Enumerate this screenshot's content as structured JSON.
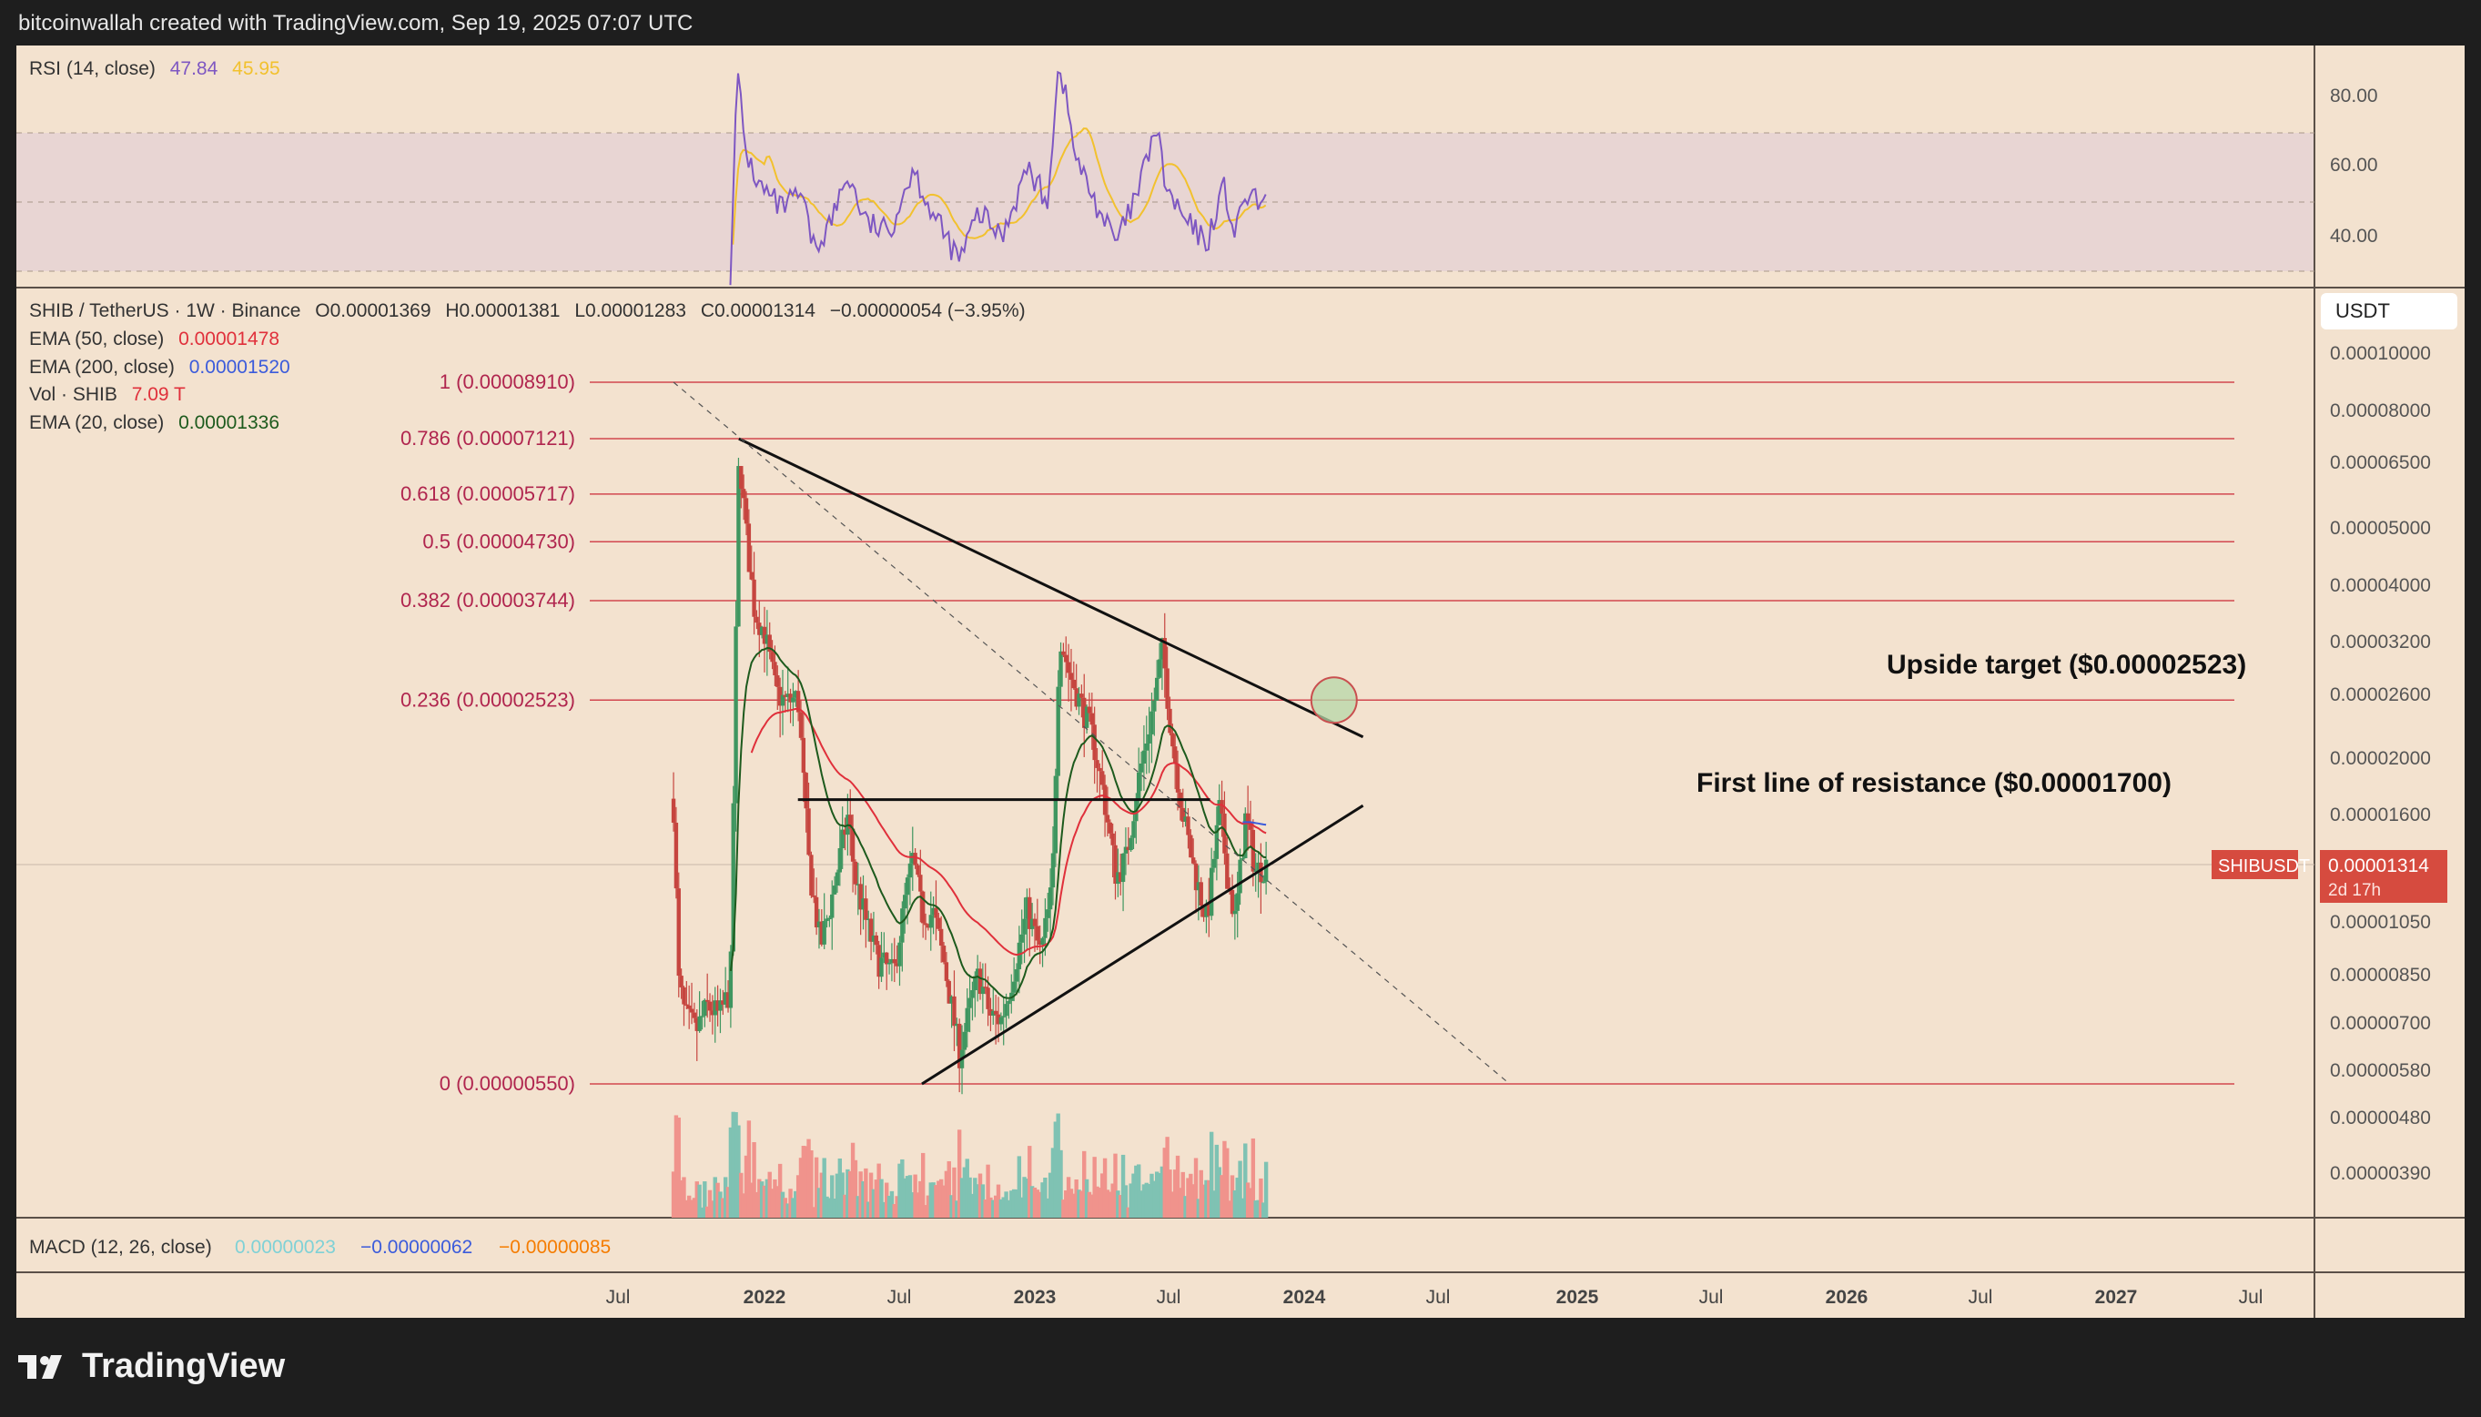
{
  "header": {
    "credit": "bitcoinwallah created with TradingView.com, Sep 19, 2025 07:07 UTC"
  },
  "brand": {
    "name": "TradingView"
  },
  "colors": {
    "page": "#1e1e1e",
    "panel": "#f3e2cf",
    "rsi_band": "#e8d5d3",
    "grid": "#b8a99a",
    "up": "#3f9660",
    "down": "#c6453f",
    "rsi_line": "#7e57c2",
    "rsi_ma": "#f2c12e",
    "ema50": "#e0303b",
    "ema20": "#1d5a1d",
    "fib": "#d2474f",
    "fib_text": "#b0254e",
    "price_badge": "#d64b3f",
    "macd_blue": "#3b5bdb",
    "macd_orange": "#f57c00",
    "macd_cyan": "#7fd1d6"
  },
  "rsi_panel": {
    "legend": {
      "label": "RSI (14, close)",
      "value1": "47.84",
      "value2": "45.95"
    },
    "ticks": [
      "80.00",
      "60.00",
      "40.00"
    ]
  },
  "price_panel": {
    "symbol_line": "SHIB / TetherUS · 1W · Binance",
    "ohlc": {
      "o": "O0.00001369",
      "h": "H0.00001381",
      "l": "L0.00001283",
      "c": "C0.00001314",
      "chg": "−0.00000054 (−3.95%)"
    },
    "indicators": [
      {
        "label": "EMA (50, close)",
        "value": "0.00001478",
        "color": "#e0303b"
      },
      {
        "label": "EMA (200, close)",
        "value": "0.00001520",
        "color": "#3b5bdb"
      },
      {
        "label": "Vol · SHIB",
        "value": "7.09 T",
        "color": "#e0303b"
      },
      {
        "label": "EMA (20, close)",
        "value": "0.00001336",
        "color": "#1d5a1d"
      }
    ],
    "currency_button": "USDT",
    "price_axis": [
      "0.00010000",
      "0.00008000",
      "0.00006500",
      "0.00005000",
      "0.00004000",
      "0.00003200",
      "0.00002600",
      "0.00002000",
      "0.00001600",
      "0.00001050",
      "0.00000850",
      "0.00000700",
      "0.00000580",
      "0.00000480",
      "0.00000390"
    ],
    "badge": {
      "symbol": "SHIBUSDT",
      "price": "0.00001314",
      "countdown": "2d 17h"
    },
    "annotations": {
      "upside": "Upside target ($0.00002523)",
      "resistance": "First line of resistance ($0.00001700)"
    }
  },
  "macd_panel": {
    "label": "MACD (12, 26, close)",
    "v1": "0.00000023",
    "v2": "−0.00000062",
    "v3": "−0.00000085"
  },
  "time_axis": [
    "Jul",
    "2022",
    "Jul",
    "2023",
    "Jul",
    "2024",
    "Jul",
    "2025",
    "Jul",
    "2026",
    "Jul",
    "2027",
    "Jul"
  ],
  "chart_data": {
    "type": "candlestick",
    "timeframe": "1W",
    "scale": "log",
    "fibonacci": [
      {
        "ratio": "1",
        "price": 8.91e-05,
        "label": "1 (0.00008910)"
      },
      {
        "ratio": "0.786",
        "price": 7.121e-05,
        "label": "0.786 (0.00007121)"
      },
      {
        "ratio": "0.618",
        "price": 5.717e-05,
        "label": "0.618 (0.00005717)"
      },
      {
        "ratio": "0.5",
        "price": 4.73e-05,
        "label": "0.5 (0.00004730)"
      },
      {
        "ratio": "0.382",
        "price": 3.744e-05,
        "label": "0.382 (0.00003744)"
      },
      {
        "ratio": "0.236",
        "price": 2.523e-05,
        "label": "0.236 (0.00002523)"
      },
      {
        "ratio": "0",
        "price": 5.5e-06,
        "label": "0 (0.00000550)"
      }
    ],
    "price_path": [
      [
        "2021-05-01",
        1.65e-05
      ],
      [
        "2021-05-15",
        8.2e-06
      ],
      [
        "2021-06-01",
        7.2e-06
      ],
      [
        "2021-07-01",
        6.8e-06
      ],
      [
        "2021-08-01",
        7.5e-06
      ],
      [
        "2021-09-01",
        7.2e-06
      ],
      [
        "2021-10-01",
        8e-06
      ],
      [
        "2021-10-24",
        6.8e-05
      ],
      [
        "2021-11-15",
        4.7e-05
      ],
      [
        "2021-12-05",
        3.6e-05
      ],
      [
        "2022-01-01",
        3.3e-05
      ],
      [
        "2022-02-01",
        2.6e-05
      ],
      [
        "2022-03-01",
        2.5e-05
      ],
      [
        "2022-04-01",
        2.55e-05
      ],
      [
        "2022-05-01",
        1.3e-05
      ],
      [
        "2022-06-01",
        9.5e-06
      ],
      [
        "2022-07-01",
        1.15e-05
      ],
      [
        "2022-08-14",
        1.6e-05
      ],
      [
        "2022-09-01",
        1.25e-05
      ],
      [
        "2022-10-01",
        1.05e-05
      ],
      [
        "2022-11-01",
        9e-06
      ],
      [
        "2022-12-15",
        8.5e-06
      ],
      [
        "2023-01-15",
        1.15e-05
      ],
      [
        "2023-02-05",
        1.35e-05
      ],
      [
        "2023-03-01",
        1.08e-05
      ],
      [
        "2023-04-01",
        1.08e-05
      ],
      [
        "2023-05-01",
        8.8e-06
      ],
      [
        "2023-06-10",
        6.2e-06
      ],
      [
        "2023-07-15",
        7.8e-06
      ],
      [
        "2023-08-01",
        8.5e-06
      ],
      [
        "2023-09-01",
        7.2e-06
      ],
      [
        "2023-10-01",
        7.1e-06
      ],
      [
        "2023-11-01",
        8.5e-06
      ],
      [
        "2023-12-10",
        1.1e-05
      ],
      [
        "2024-01-15",
        9.2e-06
      ],
      [
        "2024-02-15",
        1.2e-05
      ],
      [
        "2024-03-05",
        3.3e-05
      ],
      [
        "2024-04-01",
        2.8e-05
      ],
      [
        "2024-05-01",
        2.5e-05
      ],
      [
        "2024-06-01",
        2.2e-05
      ],
      [
        "2024-07-01",
        1.75e-05
      ],
      [
        "2024-08-05",
        1.25e-05
      ],
      [
        "2024-09-01",
        1.35e-05
      ],
      [
        "2024-10-01",
        1.8e-05
      ],
      [
        "2024-11-15",
        2.5e-05
      ],
      [
        "2024-12-08",
        3.1e-05
      ],
      [
        "2025-01-01",
        2.2e-05
      ],
      [
        "2025-02-01",
        1.6e-05
      ],
      [
        "2025-03-01",
        1.3e-05
      ],
      [
        "2025-04-07",
        1.05e-05
      ],
      [
        "2025-05-11",
        1.65e-05
      ],
      [
        "2025-06-01",
        1.25e-05
      ],
      [
        "2025-06-22",
        1.05e-05
      ],
      [
        "2025-07-20",
        1.6e-05
      ],
      [
        "2025-08-15",
        1.28e-05
      ],
      [
        "2025-09-15",
        1.314e-05
      ]
    ],
    "trendlines": [
      {
        "name": "upper",
        "from": [
          "2021-10-24",
          7.12e-05
        ],
        "to": [
          "2026-06-01",
          2.18e-05
        ]
      },
      {
        "name": "lower",
        "from": [
          "2023-03-01",
          5.5e-06
        ],
        "to": [
          "2026-06-01",
          1.66e-05
        ]
      },
      {
        "name": "resistance",
        "from": [
          "2022-04-01",
          1.7e-05
        ],
        "to": [
          "2025-04-15",
          1.7e-05
        ]
      },
      {
        "name": "dashed",
        "from": [
          "2021-05-01",
          8.91e-05
        ],
        "to": [
          "2027-07-01",
          5.5e-06
        ]
      }
    ],
    "target_marker": [
      "2026-03-15",
      2.523e-05
    ],
    "rsi": [
      [
        "2021-10-01",
        30
      ],
      [
        "2021-10-20",
        88
      ],
      [
        "2021-11-10",
        65
      ],
      [
        "2021-12-15",
        55
      ],
      [
        "2022-02-15",
        48
      ],
      [
        "2022-04-10",
        52
      ],
      [
        "2022-05-15",
        36
      ],
      [
        "2022-07-01",
        45
      ],
      [
        "2022-08-14",
        58
      ],
      [
        "2022-10-01",
        44
      ],
      [
        "2022-12-01",
        41
      ],
      [
        "2023-02-05",
        60
      ],
      [
        "2023-04-01",
        46
      ],
      [
        "2023-06-10",
        33
      ],
      [
        "2023-08-01",
        47
      ],
      [
        "2023-10-01",
        40
      ],
      [
        "2023-12-10",
        60
      ],
      [
        "2024-02-01",
        50
      ],
      [
        "2024-03-05",
        91
      ],
      [
        "2024-04-20",
        62
      ],
      [
        "2024-06-01",
        52
      ],
      [
        "2024-08-05",
        38
      ],
      [
        "2024-10-01",
        52
      ],
      [
        "2024-11-20",
        72
      ],
      [
        "2024-12-20",
        53
      ],
      [
        "2025-02-10",
        44
      ],
      [
        "2025-04-07",
        38
      ],
      [
        "2025-05-20",
        55
      ],
      [
        "2025-06-22",
        40
      ],
      [
        "2025-07-20",
        52
      ],
      [
        "2025-09-15",
        48
      ]
    ],
    "rsi_ylim": [
      30,
      90
    ],
    "price_ylim": [
      3.5e-06,
      0.00011
    ]
  }
}
